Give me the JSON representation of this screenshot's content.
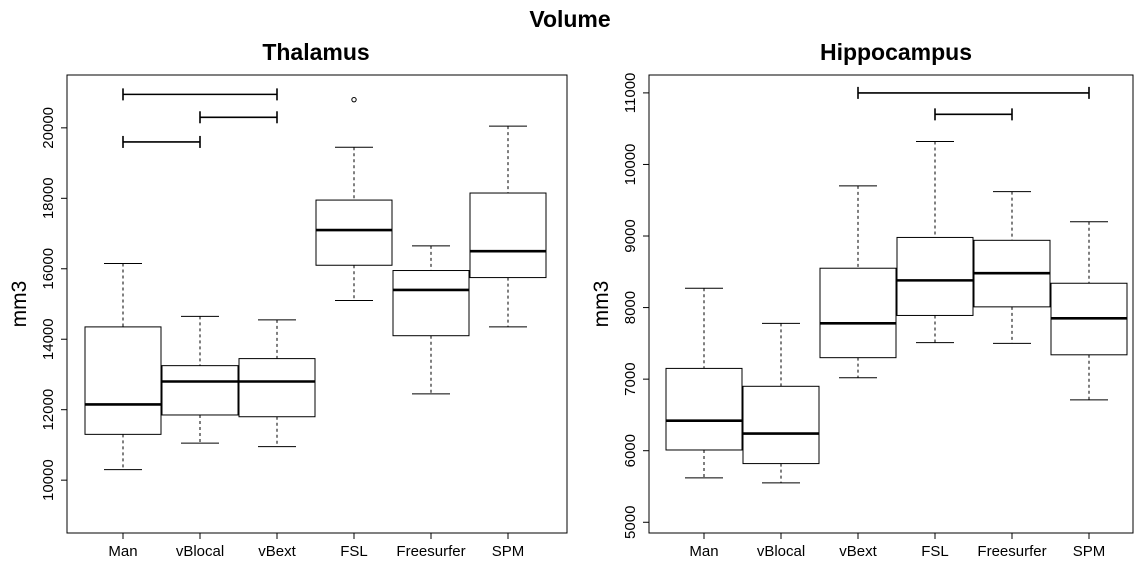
{
  "title": "Volume",
  "chart_data": [
    {
      "type": "box",
      "title": "Thalamus",
      "xlabel": "",
      "ylabel": "mm3",
      "categories": [
        "Man",
        "vBlocal",
        "vBext",
        "FSL",
        "Freesurfer",
        "SPM"
      ],
      "ylim": [
        8500,
        21500
      ],
      "yticks": [
        10000,
        12000,
        14000,
        16000,
        18000,
        20000
      ],
      "ytick_labels": [
        "10000",
        "12000",
        "14000",
        "16000",
        "18000",
        "20000"
      ],
      "boxes": [
        {
          "whisker_low": 10300,
          "q1": 11300,
          "median": 12150,
          "q3": 14350,
          "whisker_high": 16150,
          "outliers": []
        },
        {
          "whisker_low": 11050,
          "q1": 11850,
          "median": 12800,
          "q3": 13250,
          "whisker_high": 14650,
          "outliers": []
        },
        {
          "whisker_low": 10950,
          "q1": 11800,
          "median": 12800,
          "q3": 13450,
          "whisker_high": 14550,
          "outliers": []
        },
        {
          "whisker_low": 15100,
          "q1": 16100,
          "median": 17100,
          "q3": 17950,
          "whisker_high": 19450,
          "outliers": [
            20800
          ]
        },
        {
          "whisker_low": 12450,
          "q1": 14100,
          "median": 15400,
          "q3": 15950,
          "whisker_high": 16650,
          "outliers": []
        },
        {
          "whisker_low": 14350,
          "q1": 15750,
          "median": 16500,
          "q3": 18150,
          "whisker_high": 20050,
          "outliers": []
        }
      ],
      "significance_brackets": [
        {
          "from": "Man",
          "to": "vBext",
          "y": 20950
        },
        {
          "from": "vBlocal",
          "to": "vBext",
          "y": 20300
        },
        {
          "from": "Man",
          "to": "vBlocal",
          "y": 19600
        }
      ]
    },
    {
      "type": "box",
      "title": "Hippocampus",
      "xlabel": "",
      "ylabel": "mm3",
      "categories": [
        "Man",
        "vBlocal",
        "vBext",
        "FSL",
        "Freesurfer",
        "SPM"
      ],
      "ylim": [
        4850,
        11250
      ],
      "yticks": [
        5000,
        6000,
        7000,
        8000,
        9000,
        10000,
        11000
      ],
      "ytick_labels": [
        "5000",
        "6000",
        "7000",
        "8000",
        "9000",
        "10000",
        "11000"
      ],
      "boxes": [
        {
          "whisker_low": 5620,
          "q1": 6010,
          "median": 6420,
          "q3": 7150,
          "whisker_high": 8270,
          "outliers": []
        },
        {
          "whisker_low": 5550,
          "q1": 5820,
          "median": 6240,
          "q3": 6900,
          "whisker_high": 7780,
          "outliers": []
        },
        {
          "whisker_low": 7020,
          "q1": 7300,
          "median": 7780,
          "q3": 8550,
          "whisker_high": 9700,
          "outliers": []
        },
        {
          "whisker_low": 7510,
          "q1": 7890,
          "median": 8380,
          "q3": 8980,
          "whisker_high": 10320,
          "outliers": []
        },
        {
          "whisker_low": 7500,
          "q1": 8010,
          "median": 8480,
          "q3": 8940,
          "whisker_high": 9620,
          "outliers": []
        },
        {
          "whisker_low": 6710,
          "q1": 7340,
          "median": 7850,
          "q3": 8340,
          "whisker_high": 9200,
          "outliers": []
        }
      ],
      "significance_brackets": [
        {
          "from": "vBext",
          "to": "SPM",
          "y": 11000
        },
        {
          "from": "FSL",
          "to": "Freesurfer",
          "y": 10700
        }
      ]
    }
  ]
}
